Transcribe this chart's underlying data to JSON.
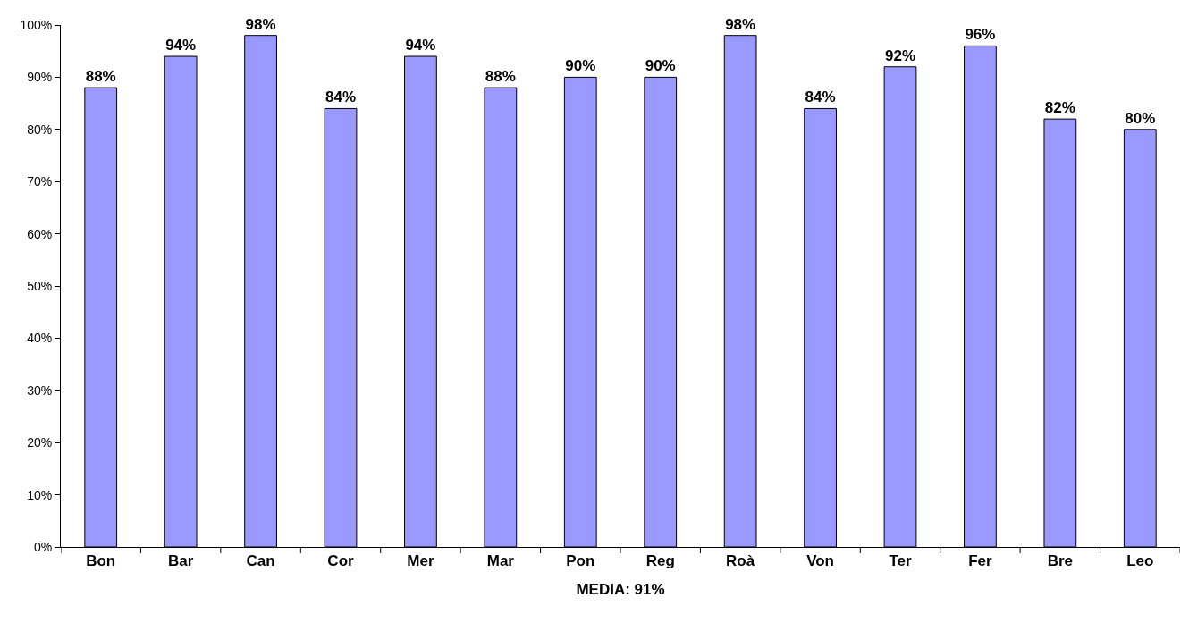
{
  "chart_data": {
    "type": "bar",
    "categories": [
      "Bon",
      "Bar",
      "Can",
      "Cor",
      "Mer",
      "Mar",
      "Pon",
      "Reg",
      "Roà",
      "Von",
      "Ter",
      "Fer",
      "Bre",
      "Leo"
    ],
    "values": [
      88,
      94,
      98,
      84,
      94,
      88,
      90,
      90,
      98,
      84,
      92,
      96,
      82,
      80
    ],
    "value_labels": [
      "88%",
      "94%",
      "98%",
      "84%",
      "94%",
      "88%",
      "90%",
      "90%",
      "98%",
      "84%",
      "92%",
      "96%",
      "82%",
      "80%"
    ],
    "color": "#9999ff",
    "xlabel": "MEDIA: 91%",
    "ylim": [
      0,
      100
    ],
    "yticks": [
      {
        "value": 0,
        "label": "0%"
      },
      {
        "value": 10,
        "label": "10%"
      },
      {
        "value": 20,
        "label": "20%"
      },
      {
        "value": 30,
        "label": "30%"
      },
      {
        "value": 40,
        "label": "40%"
      },
      {
        "value": 50,
        "label": "50%"
      },
      {
        "value": 60,
        "label": "60%"
      },
      {
        "value": 70,
        "label": "70%"
      },
      {
        "value": 80,
        "label": "80%"
      },
      {
        "value": 90,
        "label": "90%"
      },
      {
        "value": 100,
        "label": "100%"
      }
    ],
    "legend": false
  }
}
